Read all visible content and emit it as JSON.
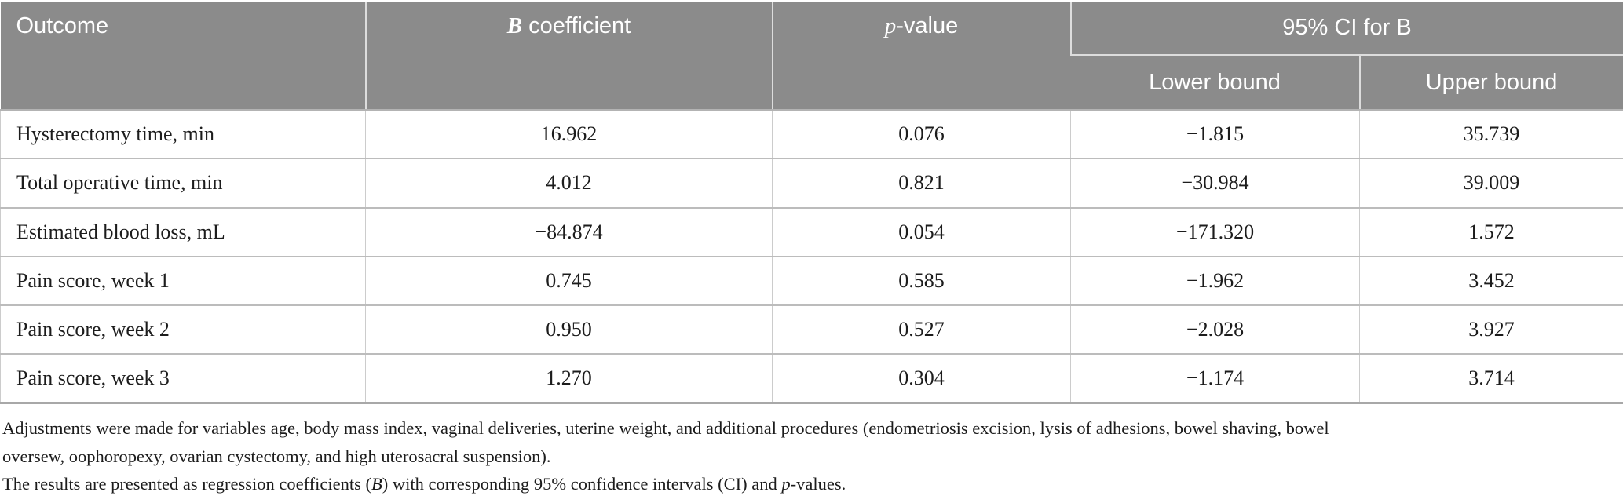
{
  "colors": {
    "header_bg": "#8b8b8b",
    "header_text": "#ffffff",
    "body_text": "#1c1c1c",
    "row_line": "#bcbcbc",
    "column_line": "#cccccc",
    "header_divider": "#dddddd",
    "table_bottom_line": "#a8a8a8"
  },
  "table": {
    "header": {
      "outcome": "Outcome",
      "b_symbol": "B",
      "b_rest": " coefficient",
      "p_symbol": "p",
      "p_rest": "-value",
      "ci_group": "95% CI for B",
      "lower_bound": "Lower bound",
      "upper_bound": "Upper bound"
    },
    "rows": [
      {
        "outcome": "Hysterectomy time, min",
        "b": "16.962",
        "p": "0.076",
        "lower": "−1.815",
        "upper": "35.739"
      },
      {
        "outcome": "Total operative time, min",
        "b": "4.012",
        "p": "0.821",
        "lower": "−30.984",
        "upper": "39.009"
      },
      {
        "outcome": "Estimated blood loss, mL",
        "b": "−84.874",
        "p": "0.054",
        "lower": "−171.320",
        "upper": "1.572"
      },
      {
        "outcome": "Pain score, week 1",
        "b": "0.745",
        "p": "0.585",
        "lower": "−1.962",
        "upper": "3.452"
      },
      {
        "outcome": "Pain score, week 2",
        "b": "0.950",
        "p": "0.527",
        "lower": "−2.028",
        "upper": "3.927"
      },
      {
        "outcome": "Pain score, week 3",
        "b": "1.270",
        "p": "0.304",
        "lower": "−1.174",
        "upper": "3.714"
      }
    ]
  },
  "footnotes": {
    "adjustments_line1": "Adjustments were made for variables age, body mass index, vaginal deliveries, uterine weight, and additional procedures (endometriosis excision, lysis of adhesions, bowel shaving, bowel",
    "adjustments_line2": "oversew, oophoropexy, ovarian cystectomy, and high uterosacral suspension).",
    "results_pre": "The results are presented as regression coefficients (",
    "results_b": "B",
    "results_mid": ") with corresponding 95% confidence intervals (CI) and ",
    "results_p": "p",
    "results_post": "-values."
  }
}
